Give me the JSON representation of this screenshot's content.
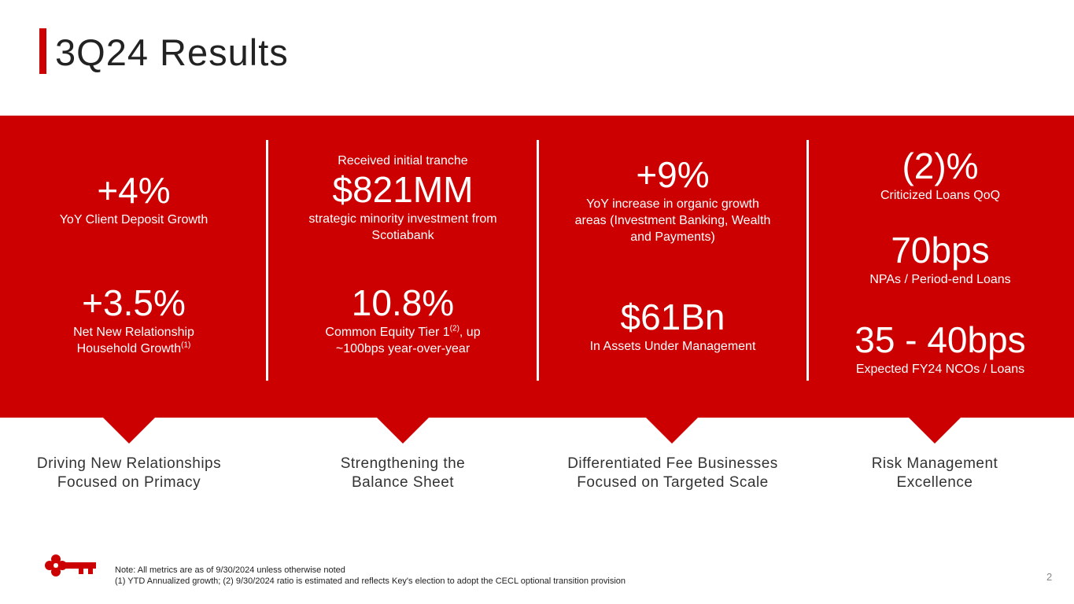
{
  "header": {
    "title": "3Q24 Results"
  },
  "columns": [
    {
      "m1": {
        "value": "+4%",
        "label": "YoY Client Deposit Growth"
      },
      "m2": {
        "value": "+3.5%",
        "label_line1": "Net New Relationship",
        "label_line2": "Household Growth",
        "label_sup": "(1)"
      },
      "theme_line1": "Driving New Relationships",
      "theme_line2": "Focused on Primacy"
    },
    {
      "m1": {
        "pre": "Received initial tranche",
        "value": "$821MM",
        "label_line1": "strategic minority investment from",
        "label_line2": "Scotiabank"
      },
      "m2": {
        "value": "10.8%",
        "label_a": "Common Equity Tier 1",
        "label_sup": "(2)",
        "label_b": ", up",
        "label_line2": "~100bps year-over-year"
      },
      "theme_line1": "Strengthening the",
      "theme_line2": "Balance Sheet"
    },
    {
      "m1": {
        "value": "+9%",
        "label_line1": "YoY increase in organic growth",
        "label_line2": "areas (Investment Banking, Wealth",
        "label_line3": "and Payments)"
      },
      "m2": {
        "value": "$61Bn",
        "label": "In Assets Under Management"
      },
      "theme_line1": "Differentiated Fee Businesses",
      "theme_line2": "Focused on Targeted Scale"
    },
    {
      "m1": {
        "value": "(2)%",
        "label": "Criticized Loans QoQ"
      },
      "m2": {
        "value": "70bps",
        "label": "NPAs / Period-end Loans"
      },
      "m3": {
        "value": "35 - 40bps",
        "label": "Expected FY24 NCOs / Loans"
      },
      "theme_line1": "Risk Management",
      "theme_line2": "Excellence"
    }
  ],
  "footer": {
    "note_line1": "Note: All metrics are as of 9/30/2024 unless otherwise noted",
    "note_line2": "(1) YTD Annualized growth; (2) 9/30/2024 ratio is estimated and reflects Key's election to adopt the CECL optional transition provision",
    "page_number": "2"
  },
  "colors": {
    "brand_red": "#cc0000",
    "text_dark": "#333333"
  },
  "icons": {
    "logo": "key-logo-icon"
  }
}
